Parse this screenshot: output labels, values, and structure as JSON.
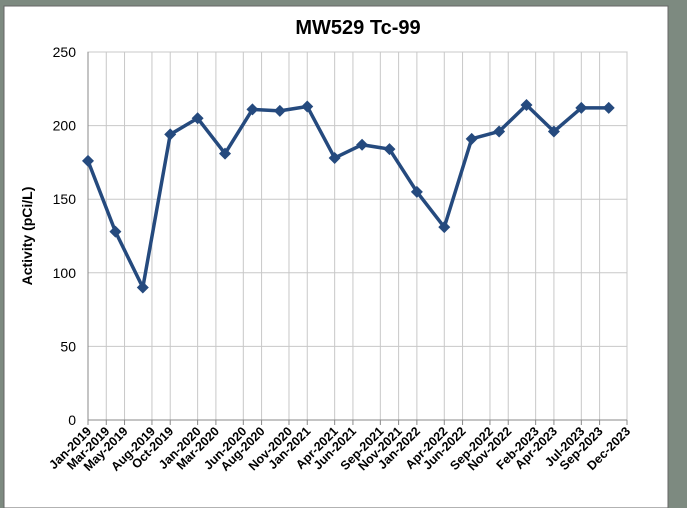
{
  "chart_data": {
    "type": "line",
    "title": "MW529 Tc-99",
    "y_label": "Activity (pCi/L)",
    "x": [
      0,
      3,
      6,
      9,
      12,
      15,
      18,
      21,
      24,
      27,
      30,
      33,
      36,
      39,
      42,
      45,
      48,
      51,
      54,
      57
    ],
    "series": [
      {
        "name": "Tc-99",
        "color": "#254a7e",
        "values": [
          176,
          128,
          90,
          194,
          205,
          181,
          211,
          210,
          213,
          178,
          187,
          184,
          155,
          131,
          191,
          196,
          214,
          196,
          212,
          212
        ]
      }
    ],
    "xlim": [
      0,
      59
    ],
    "xticks": [
      {
        "value": 0,
        "label": "Jan-2019"
      },
      {
        "value": 2,
        "label": "Mar-2019"
      },
      {
        "value": 4,
        "label": "May-2019"
      },
      {
        "value": 7,
        "label": "Aug-2019"
      },
      {
        "value": 9,
        "label": "Oct-2019"
      },
      {
        "value": 12,
        "label": "Jan-2020"
      },
      {
        "value": 14,
        "label": "Mar-2020"
      },
      {
        "value": 17,
        "label": "Jun-2020"
      },
      {
        "value": 19,
        "label": "Aug-2020"
      },
      {
        "value": 22,
        "label": "Nov-2020"
      },
      {
        "value": 24,
        "label": "Jan-2021"
      },
      {
        "value": 27,
        "label": "Apr-2021"
      },
      {
        "value": 29,
        "label": "Jun-2021"
      },
      {
        "value": 32,
        "label": "Sep-2021"
      },
      {
        "value": 34,
        "label": "Nov-2021"
      },
      {
        "value": 36,
        "label": "Jan-2022"
      },
      {
        "value": 39,
        "label": "Apr-2022"
      },
      {
        "value": 41,
        "label": "Jun-2022"
      },
      {
        "value": 44,
        "label": "Sep-2022"
      },
      {
        "value": 46,
        "label": "Nov-2022"
      },
      {
        "value": 49,
        "label": "Feb-2023"
      },
      {
        "value": 51,
        "label": "Apr-2023"
      },
      {
        "value": 54,
        "label": "Jul-2023"
      },
      {
        "value": 56,
        "label": "Sep-2023"
      },
      {
        "value": 59,
        "label": "Dec-2023"
      }
    ],
    "ylim": [
      0,
      250
    ],
    "yticks": [
      0,
      50,
      100,
      150,
      200,
      250
    ],
    "grid": true
  }
}
